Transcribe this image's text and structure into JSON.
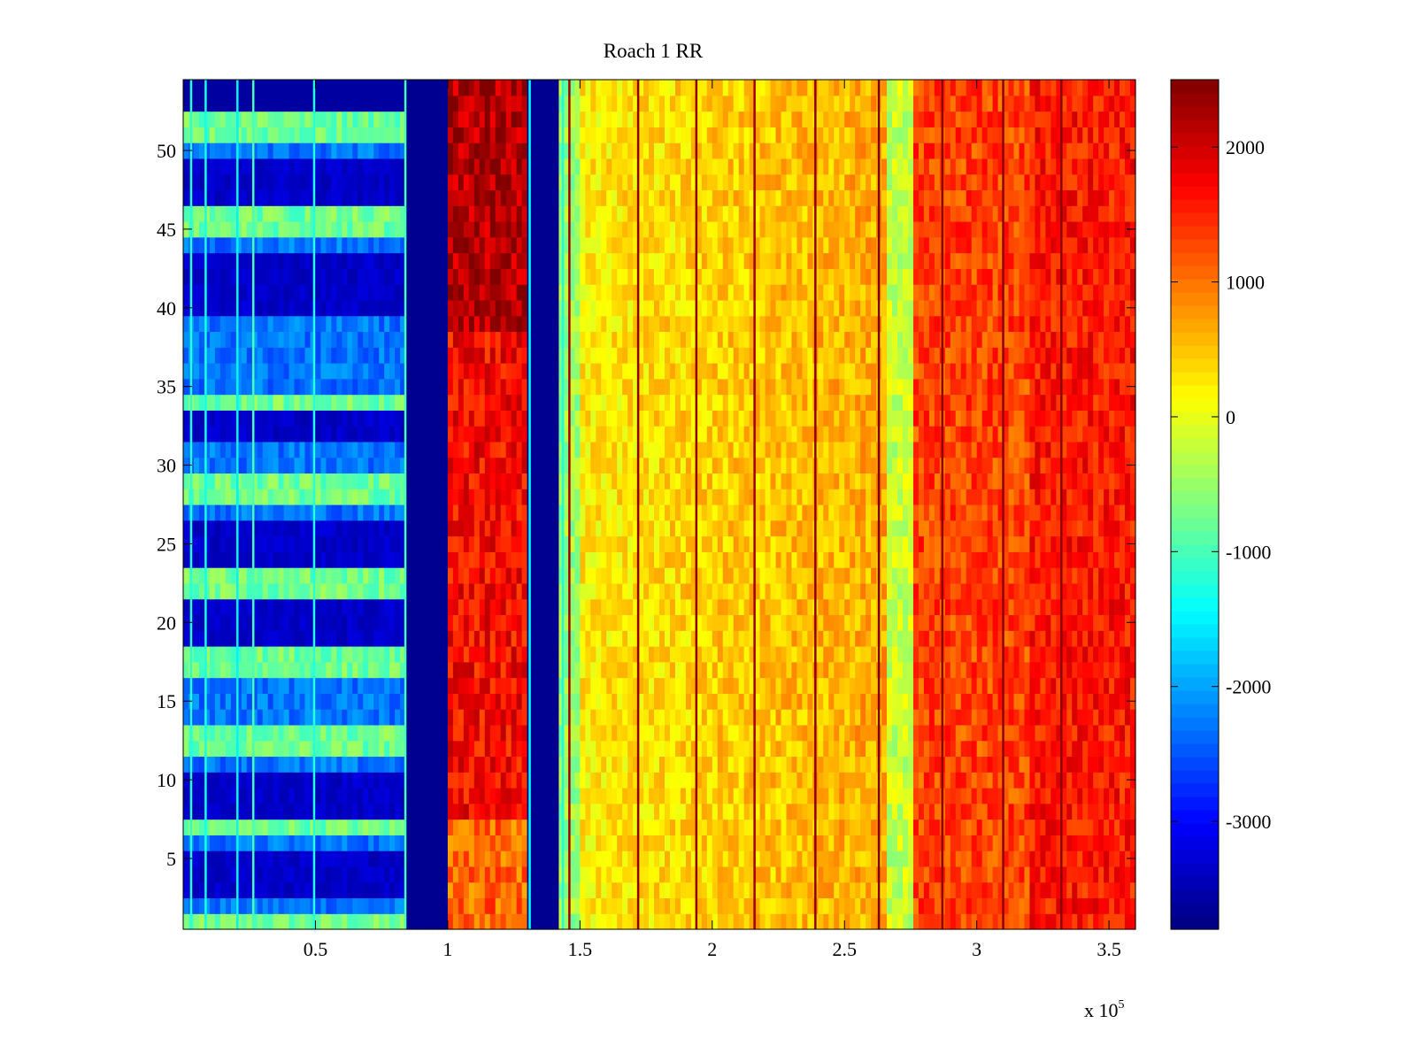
{
  "chart_data": {
    "type": "heatmap",
    "title": "Roach 1 RR",
    "xlabel": "",
    "ylabel": "",
    "colormap": "jet",
    "x_range": [
      0,
      360000
    ],
    "y_range": [
      0.5,
      54.5
    ],
    "rows": 54,
    "x_exponent_label": "x 10",
    "x_exponent_power": "5",
    "x_ticks": [
      {
        "value": 0.5,
        "label": "0.5"
      },
      {
        "value": 1,
        "label": "1"
      },
      {
        "value": 1.5,
        "label": "1.5"
      },
      {
        "value": 2,
        "label": "2"
      },
      {
        "value": 2.5,
        "label": "2.5"
      },
      {
        "value": 3,
        "label": "3"
      },
      {
        "value": 3.5,
        "label": "3.5"
      }
    ],
    "y_ticks": [
      {
        "value": 5,
        "label": "5"
      },
      {
        "value": 10,
        "label": "10"
      },
      {
        "value": 15,
        "label": "15"
      },
      {
        "value": 20,
        "label": "20"
      },
      {
        "value": 25,
        "label": "25"
      },
      {
        "value": 30,
        "label": "30"
      },
      {
        "value": 35,
        "label": "35"
      },
      {
        "value": 40,
        "label": "40"
      },
      {
        "value": 45,
        "label": "45"
      },
      {
        "value": 50,
        "label": "50"
      }
    ],
    "colorbar": {
      "range": [
        -3800,
        2500
      ],
      "ticks": [
        {
          "value": 2000,
          "label": "2000"
        },
        {
          "value": 1000,
          "label": "1000"
        },
        {
          "value": 0,
          "label": "0"
        },
        {
          "value": -1000,
          "label": "-1000"
        },
        {
          "value": -2000,
          "label": "-2000"
        },
        {
          "value": -3000,
          "label": "-3000"
        }
      ]
    },
    "segments": [
      {
        "x_start": 0,
        "x_end": 85000,
        "level": -2900,
        "description": "blue banded region"
      },
      {
        "x_start": 85000,
        "x_end": 100000,
        "level": -3700,
        "description": "dark blue gap"
      },
      {
        "x_start": 100000,
        "x_end": 130000,
        "level": 1700,
        "description": "red/orange band"
      },
      {
        "x_start": 130000,
        "x_end": 143000,
        "level": -3700,
        "description": "dark blue gap"
      },
      {
        "x_start": 143000,
        "x_end": 276000,
        "level": 200,
        "description": "yellow region"
      },
      {
        "x_start": 276000,
        "x_end": 360000,
        "level": 1300,
        "description": "orange region"
      }
    ],
    "bright_rows": [
      1,
      7,
      12,
      13,
      17,
      18,
      22,
      23,
      28,
      29,
      34,
      45,
      46,
      51,
      52
    ],
    "dark_rows": [
      3,
      4,
      5,
      8,
      9,
      10,
      19,
      20,
      21,
      24,
      25,
      26,
      32,
      33,
      40,
      41,
      42,
      43,
      47,
      48,
      49
    ]
  }
}
